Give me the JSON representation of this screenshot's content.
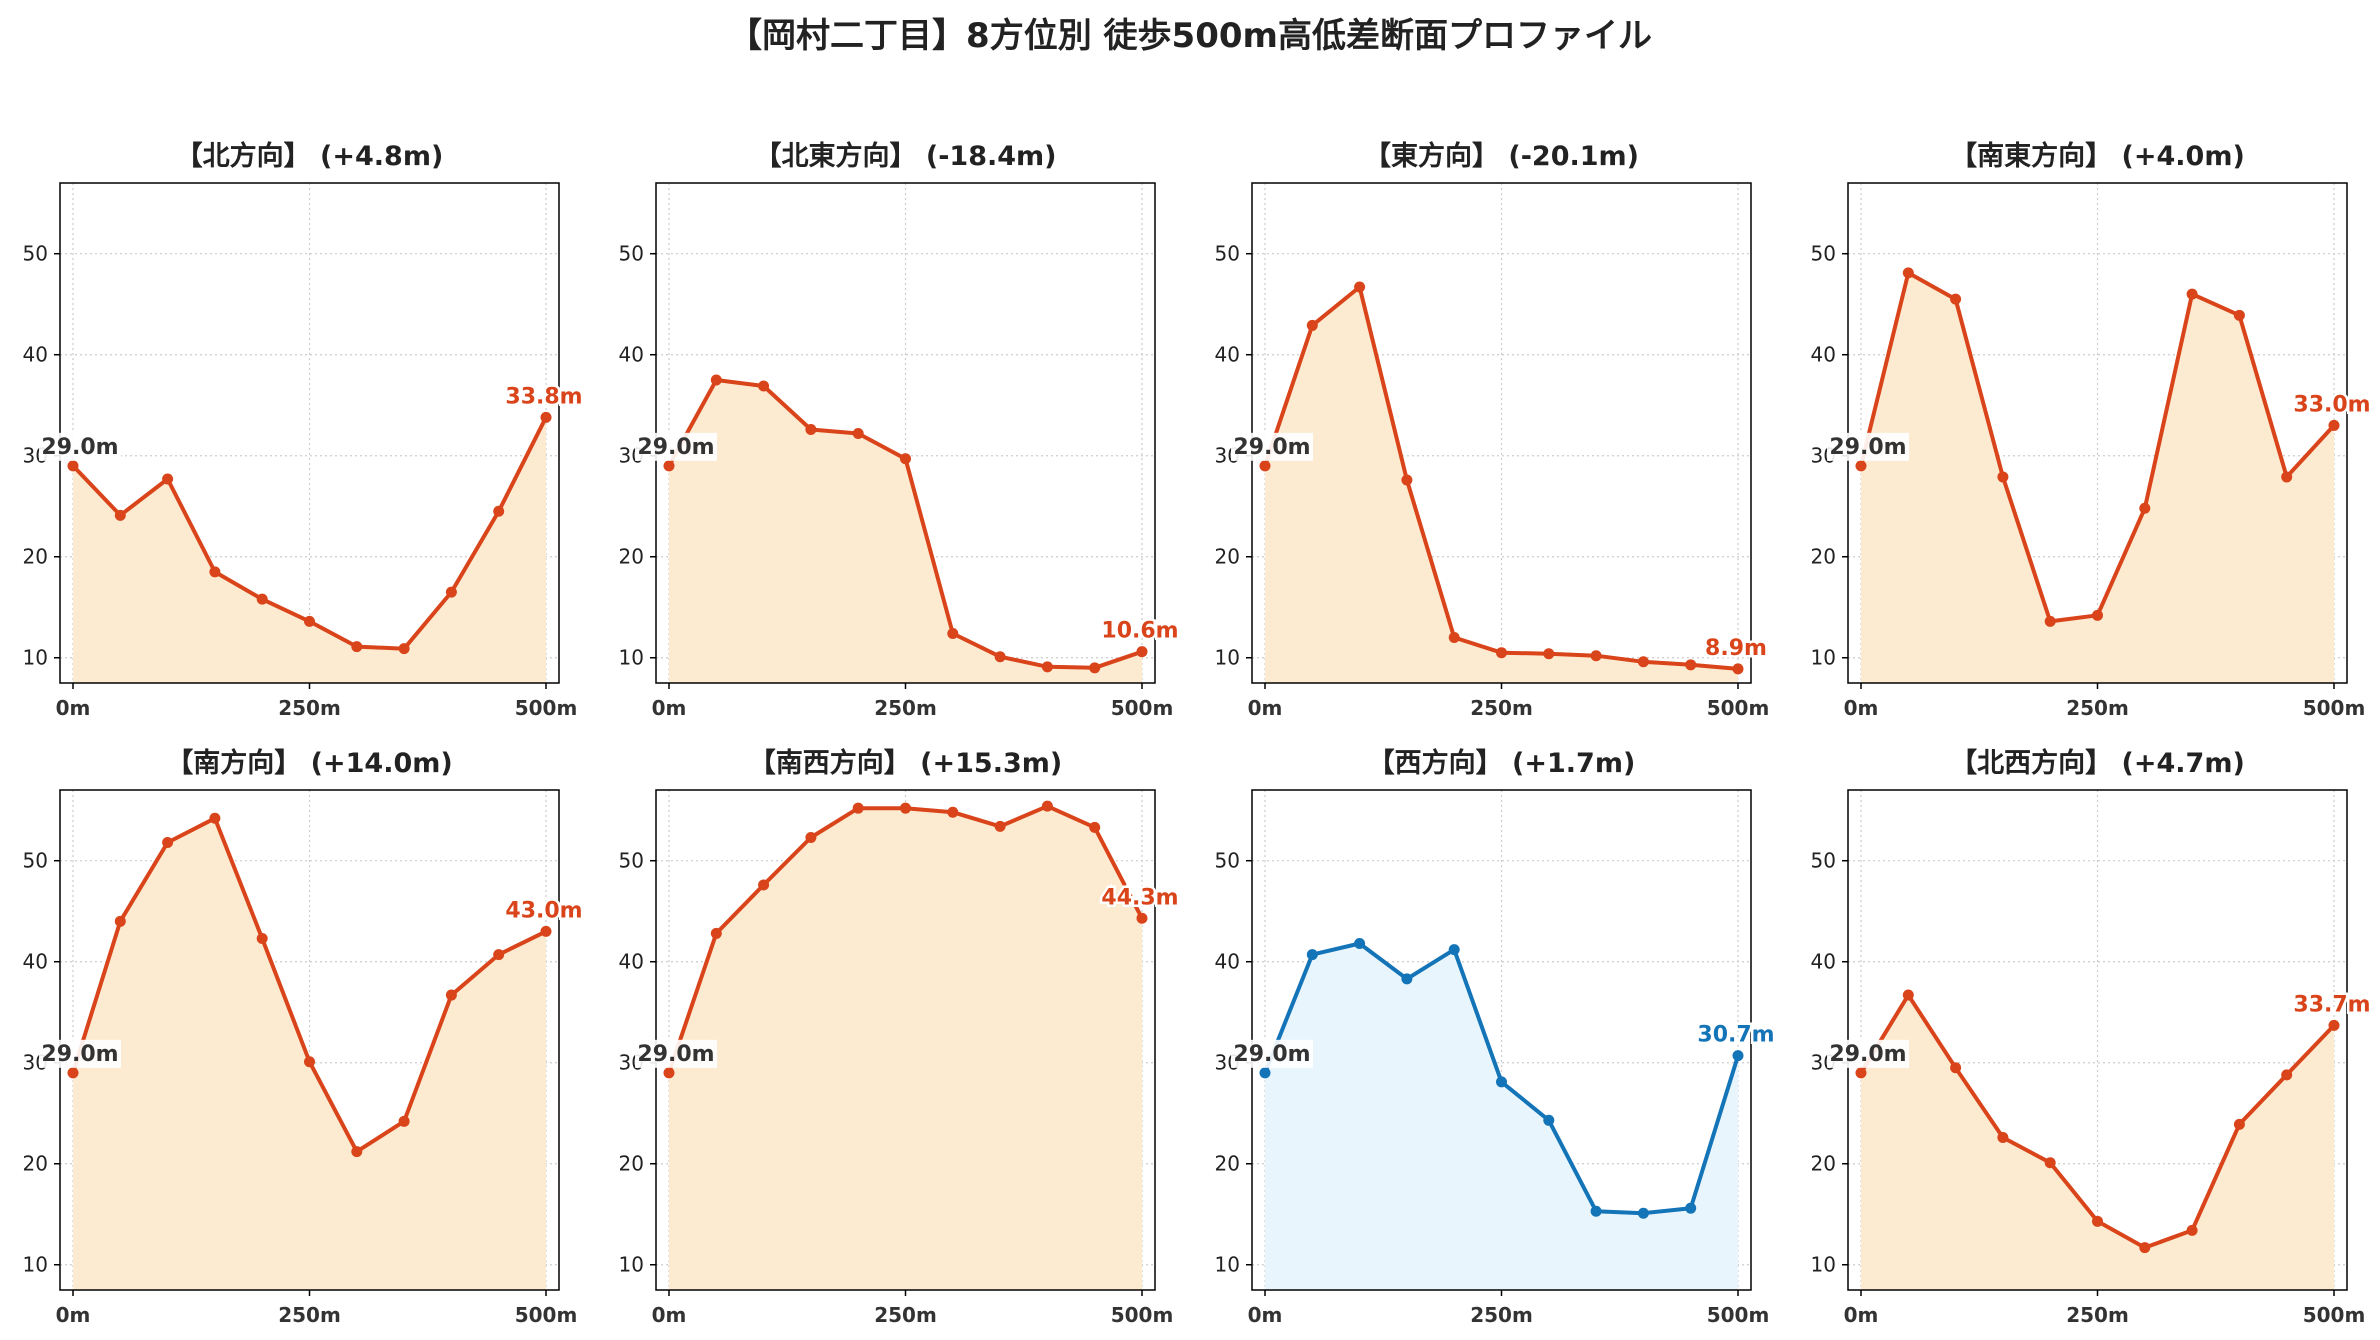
{
  "title": "【岡村二丁目】8方位別 徒歩500m高低差断面プロファイル",
  "colors": {
    "line_default": "#d9441a",
    "fill_default": "#fdebd1",
    "line_west": "#1474b8",
    "fill_west": "#e8f5fc",
    "start_label": "#333333",
    "grid": "#cccccc"
  },
  "chart_data": [
    {
      "type": "area",
      "title": "【北方向】 (+4.8m)",
      "x": [
        0,
        50,
        100,
        150,
        200,
        250,
        300,
        350,
        400,
        450,
        500
      ],
      "values": [
        29.0,
        24.1,
        27.7,
        18.5,
        15.8,
        13.6,
        11.1,
        10.9,
        16.5,
        24.5,
        33.8
      ],
      "start_label": "29.0m",
      "end_label": "33.8m",
      "xticks": [
        "0m",
        "250m",
        "500m"
      ],
      "yticks": [
        "10",
        "20",
        "30",
        "40",
        "50"
      ],
      "ylim": [
        7.5,
        57
      ],
      "grid": true,
      "style": "default"
    },
    {
      "type": "area",
      "title": "【北東方向】 (-18.4m)",
      "x": [
        0,
        50,
        100,
        150,
        200,
        250,
        300,
        350,
        400,
        450,
        500
      ],
      "values": [
        29.0,
        37.5,
        36.9,
        32.6,
        32.2,
        29.7,
        12.4,
        10.1,
        9.1,
        9.0,
        10.6
      ],
      "start_label": "29.0m",
      "end_label": "10.6m",
      "xticks": [
        "0m",
        "250m",
        "500m"
      ],
      "yticks": [
        "10",
        "20",
        "30",
        "40",
        "50"
      ],
      "ylim": [
        7.5,
        57
      ],
      "grid": true,
      "style": "default"
    },
    {
      "type": "area",
      "title": "【東方向】 (-20.1m)",
      "x": [
        0,
        50,
        100,
        150,
        200,
        250,
        300,
        350,
        400,
        450,
        500
      ],
      "values": [
        29.0,
        42.9,
        46.7,
        27.6,
        12.0,
        10.5,
        10.4,
        10.2,
        9.6,
        9.3,
        8.9
      ],
      "start_label": "29.0m",
      "end_label": "8.9m",
      "xticks": [
        "0m",
        "250m",
        "500m"
      ],
      "yticks": [
        "10",
        "20",
        "30",
        "40",
        "50"
      ],
      "ylim": [
        7.5,
        57
      ],
      "grid": true,
      "style": "default"
    },
    {
      "type": "area",
      "title": "【南東方向】 (+4.0m)",
      "x": [
        0,
        50,
        100,
        150,
        200,
        250,
        300,
        350,
        400,
        450,
        500
      ],
      "values": [
        29.0,
        48.1,
        45.5,
        27.9,
        13.6,
        14.2,
        24.8,
        46.0,
        43.9,
        27.9,
        33.0
      ],
      "start_label": "29.0m",
      "end_label": "33.0m",
      "xticks": [
        "0m",
        "250m",
        "500m"
      ],
      "yticks": [
        "10",
        "20",
        "30",
        "40",
        "50"
      ],
      "ylim": [
        7.5,
        57
      ],
      "grid": true,
      "style": "default"
    },
    {
      "type": "area",
      "title": "【南方向】 (+14.0m)",
      "x": [
        0,
        50,
        100,
        150,
        200,
        250,
        300,
        350,
        400,
        450,
        500
      ],
      "values": [
        29.0,
        44.0,
        51.8,
        54.2,
        42.3,
        30.1,
        21.2,
        24.2,
        36.7,
        40.7,
        43.0
      ],
      "start_label": "29.0m",
      "end_label": "43.0m",
      "xticks": [
        "0m",
        "250m",
        "500m"
      ],
      "yticks": [
        "10",
        "20",
        "30",
        "40",
        "50"
      ],
      "ylim": [
        7.5,
        57
      ],
      "grid": true,
      "style": "default"
    },
    {
      "type": "area",
      "title": "【南西方向】 (+15.3m)",
      "x": [
        0,
        50,
        100,
        150,
        200,
        250,
        300,
        350,
        400,
        450,
        500
      ],
      "values": [
        29.0,
        42.8,
        47.6,
        52.3,
        55.2,
        55.2,
        54.8,
        53.4,
        55.4,
        53.3,
        44.3
      ],
      "start_label": "29.0m",
      "end_label": "44.3m",
      "xticks": [
        "0m",
        "250m",
        "500m"
      ],
      "yticks": [
        "10",
        "20",
        "30",
        "40",
        "50"
      ],
      "ylim": [
        7.5,
        57
      ],
      "grid": true,
      "style": "default"
    },
    {
      "type": "area",
      "title": "【西方向】 (+1.7m)",
      "x": [
        0,
        50,
        100,
        150,
        200,
        250,
        300,
        350,
        400,
        450,
        500
      ],
      "values": [
        29.0,
        40.7,
        41.8,
        38.3,
        41.2,
        28.1,
        24.3,
        15.3,
        15.1,
        15.6,
        30.7
      ],
      "start_label": "29.0m",
      "end_label": "30.7m",
      "xticks": [
        "0m",
        "250m",
        "500m"
      ],
      "yticks": [
        "10",
        "20",
        "30",
        "40",
        "50"
      ],
      "ylim": [
        7.5,
        57
      ],
      "grid": true,
      "style": "west"
    },
    {
      "type": "area",
      "title": "【北西方向】 (+4.7m)",
      "x": [
        0,
        50,
        100,
        150,
        200,
        250,
        300,
        350,
        400,
        450,
        500
      ],
      "values": [
        29.0,
        36.7,
        29.5,
        22.6,
        20.1,
        14.3,
        11.7,
        13.4,
        23.9,
        28.8,
        33.7
      ],
      "start_label": "29.0m",
      "end_label": "33.7m",
      "xticks": [
        "0m",
        "250m",
        "500m"
      ],
      "yticks": [
        "10",
        "20",
        "30",
        "40",
        "50"
      ],
      "ylim": [
        7.5,
        57
      ],
      "grid": true,
      "style": "default"
    }
  ]
}
